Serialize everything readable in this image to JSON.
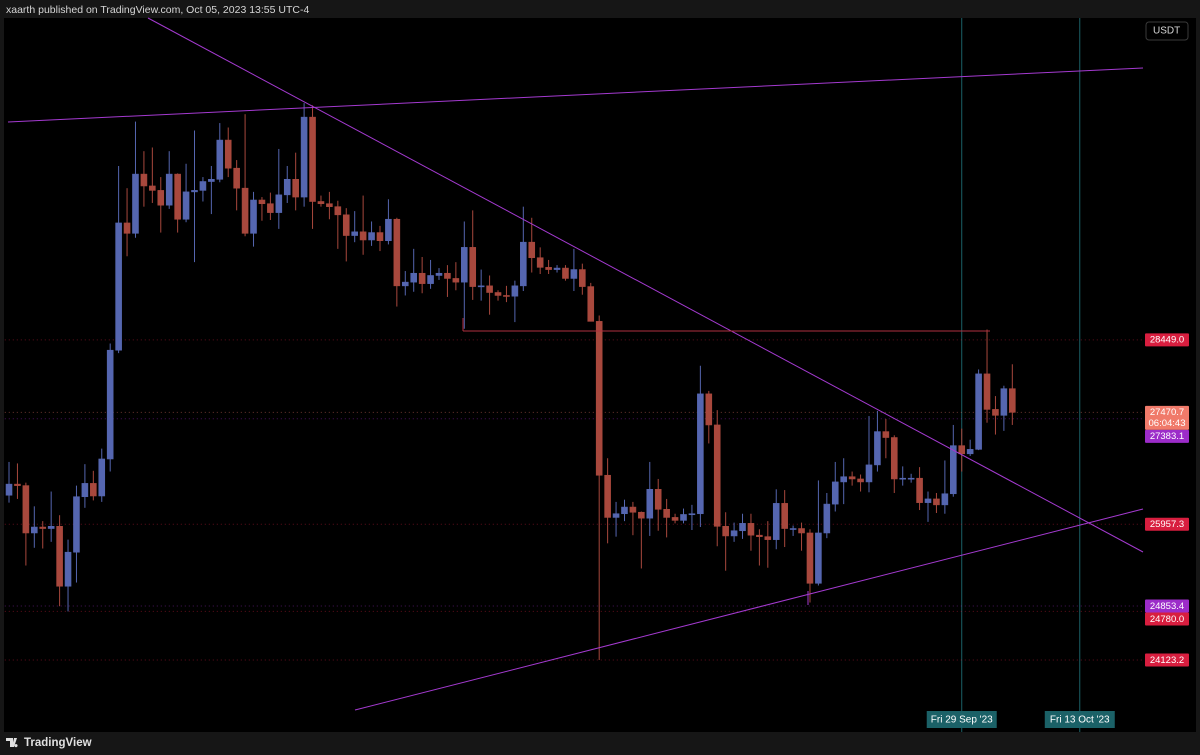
{
  "header": {
    "byline": "xaarth published on TradingView.com, Oct 05, 2023 13:55 UTC-4"
  },
  "footer": {
    "brand": "TradingView"
  },
  "chart_data": {
    "type": "candlestick",
    "currency": "USDT",
    "categories": [
      null,
      null,
      null,
      null,
      null,
      null,
      null,
      null,
      null,
      null,
      null,
      null,
      null,
      null,
      null,
      null,
      null,
      null,
      null,
      null,
      null,
      null,
      null,
      null,
      null,
      null,
      null,
      null,
      null,
      null,
      null,
      null,
      null,
      null,
      null,
      null,
      null,
      null,
      null,
      null,
      null,
      null,
      null,
      null,
      null,
      null,
      null,
      null,
      null,
      null,
      null,
      null,
      null,
      null,
      null,
      null,
      null,
      null,
      null,
      null,
      null,
      null,
      null,
      null,
      null,
      null,
      null,
      null,
      null,
      null,
      null,
      null,
      null,
      null,
      null,
      null,
      null,
      null,
      null,
      null,
      null,
      null,
      null,
      null,
      null,
      null,
      null,
      null,
      null,
      null,
      null,
      null,
      null,
      null,
      null,
      null,
      null,
      null,
      null,
      null,
      null,
      null,
      null,
      null,
      null,
      null,
      null,
      null,
      null,
      null,
      null,
      null,
      null,
      "Fri 29 Sep '23",
      null,
      null,
      null,
      null,
      null,
      null,
      null,
      null,
      null,
      null,
      null,
      null,
      null,
      "Fri 13 Oct '23",
      null,
      null,
      null,
      null,
      null,
      null,
      null
    ],
    "open": [
      26350,
      26500,
      26480,
      25840,
      25920,
      25900,
      25930,
      25120,
      25580,
      26330,
      26510,
      26340,
      26840,
      28310,
      30030,
      29890,
      30690,
      30530,
      30470,
      30270,
      30690,
      30080,
      30450,
      30470,
      30590,
      30620,
      31150,
      30770,
      30500,
      29890,
      30340,
      30290,
      30170,
      30410,
      30620,
      30380,
      31460,
      30320,
      30290,
      30250,
      30140,
      29860,
      29910,
      29800,
      29900,
      29790,
      30080,
      29180,
      29230,
      29350,
      29210,
      29320,
      29350,
      29280,
      29230,
      29700,
      29170,
      29180,
      29090,
      29050,
      29040,
      29180,
      29770,
      29560,
      29430,
      29400,
      29420,
      29280,
      29400,
      29170,
      28700,
      26620,
      26050,
      26100,
      26190,
      26120,
      26040,
      26430,
      26160,
      26050,
      26010,
      26090,
      26100,
      27720,
      27300,
      25930,
      25800,
      25870,
      25970,
      25810,
      25790,
      25750,
      26240,
      25900,
      25900,
      25840,
      25160,
      25840,
      26230,
      26530,
      26600,
      26570,
      26530,
      26760,
      27210,
      27130,
      26570,
      26580,
      26580,
      26250,
      26300,
      26220,
      26370,
      27020,
      26910,
      26970,
      27990,
      27510,
      27430,
      27790,
      null,
      null,
      null,
      null,
      null,
      null,
      null,
      null,
      null,
      null,
      null,
      null,
      null,
      null,
      null
    ],
    "high": [
      26800,
      26780,
      26520,
      26200,
      26000,
      26400,
      26080,
      25750,
      26480,
      26770,
      26680,
      26980,
      28400,
      30800,
      30500,
      31400,
      31000,
      31050,
      30650,
      31000,
      30700,
      30830,
      31280,
      30650,
      30800,
      31380,
      31320,
      30880,
      31500,
      30450,
      30380,
      30440,
      31030,
      30800,
      30980,
      31650,
      31620,
      30400,
      30450,
      30330,
      30230,
      30190,
      30400,
      30050,
      29990,
      30350,
      30100,
      29380,
      29680,
      29570,
      29530,
      29420,
      29460,
      29500,
      30050,
      30200,
      29400,
      29320,
      29120,
      29180,
      29250,
      30250,
      30100,
      29700,
      29530,
      29460,
      29460,
      29680,
      29480,
      29220,
      28780,
      26850,
      26260,
      26290,
      26260,
      26130,
      26800,
      26570,
      26300,
      26100,
      26170,
      26220,
      28100,
      27760,
      27500,
      26120,
      25980,
      26100,
      26100,
      25890,
      26000,
      26430,
      26420,
      25940,
      25980,
      25890,
      26550,
      26380,
      26800,
      26850,
      26670,
      26630,
      27420,
      27490,
      27380,
      27160,
      26740,
      26640,
      26730,
      26400,
      26380,
      26820,
      27300,
      27250,
      27100,
      28050,
      28590,
      27690,
      27830,
      28120,
      null,
      null,
      null,
      null,
      null,
      null,
      null,
      null,
      null,
      null,
      null,
      null,
      null,
      null,
      null
    ],
    "low": [
      26250,
      26300,
      25400,
      25640,
      25630,
      25720,
      24850,
      24780,
      25170,
      26180,
      26280,
      26260,
      26670,
      28270,
      29580,
      29830,
      30250,
      30300,
      29900,
      30220,
      29900,
      30040,
      29500,
      30320,
      30150,
      30580,
      30650,
      30200,
      29850,
      29710,
      30060,
      30070,
      29950,
      30300,
      30200,
      30250,
      29950,
      30250,
      30080,
      29680,
      29510,
      29770,
      29600,
      29720,
      29650,
      29740,
      28900,
      29050,
      29100,
      29080,
      29140,
      29260,
      29030,
      29120,
      28600,
      28990,
      28980,
      28790,
      28980,
      28960,
      28690,
      29110,
      29360,
      29340,
      29340,
      29360,
      29250,
      29110,
      29060,
      28700,
      24123.2,
      25700,
      25790,
      26000,
      25810,
      25360,
      25800,
      25870,
      25780,
      25970,
      25970,
      25880,
      25920,
      27050,
      25660,
      25330,
      25720,
      25760,
      25600,
      25400,
      25370,
      25620,
      25650,
      25800,
      25600,
      24900,
      25130,
      25770,
      26130,
      26230,
      26480,
      26400,
      26390,
      26670,
      26850,
      26380,
      26480,
      26520,
      26150,
      25990,
      26110,
      26100,
      26330,
      26670,
      26880,
      26960,
      27330,
      27170,
      27220,
      27300,
      null,
      null,
      null,
      null,
      null,
      null,
      null,
      null,
      null,
      null,
      null,
      null,
      null,
      null,
      null
    ],
    "close": [
      26500,
      26480,
      25840,
      25920,
      25900,
      25930,
      25120,
      25580,
      26330,
      26510,
      26340,
      26840,
      28310,
      30030,
      29890,
      30690,
      30530,
      30470,
      30270,
      30690,
      30080,
      30450,
      30470,
      30590,
      30620,
      31150,
      30770,
      30500,
      29890,
      30340,
      30290,
      30170,
      30410,
      30620,
      30380,
      31460,
      30320,
      30290,
      30250,
      30140,
      29860,
      29910,
      29800,
      29900,
      29790,
      30080,
      29180,
      29230,
      29350,
      29210,
      29320,
      29350,
      29280,
      29230,
      29700,
      29170,
      29180,
      29090,
      29050,
      29040,
      29180,
      29770,
      29560,
      29430,
      29400,
      29420,
      29280,
      29400,
      29170,
      28700,
      26620,
      26050,
      26100,
      26190,
      26120,
      26040,
      26430,
      26160,
      26050,
      26010,
      26090,
      26100,
      27720,
      27300,
      25930,
      25800,
      25870,
      25970,
      25810,
      25790,
      25750,
      26240,
      25900,
      25900,
      25840,
      25160,
      25840,
      26230,
      26530,
      26600,
      26570,
      26530,
      26760,
      27210,
      27130,
      26570,
      26580,
      26580,
      26250,
      26300,
      26220,
      26370,
      27020,
      26910,
      26970,
      27990,
      27510,
      27430,
      27790,
      27470.7,
      null,
      null,
      null,
      null,
      null,
      null,
      null,
      null,
      null,
      null,
      null,
      null,
      null,
      null,
      null
    ],
    "up_color": "#5566b0",
    "down_color": "#a8483d",
    "ylim": [
      23150,
      32800
    ],
    "price_labels": [
      {
        "value": 28449.0,
        "label": "28449.0",
        "color": "#d81e3f"
      },
      {
        "value": 27470.7,
        "label": "27470.7",
        "countdown": "06:04:43",
        "color": "#f07a6a"
      },
      {
        "value": 27383.1,
        "label": "27383.1",
        "color": "#9c2cc9"
      },
      {
        "value": 25957.3,
        "label": "25957.3",
        "color": "#d81e3f"
      },
      {
        "value": 24853.4,
        "label": "24853.4",
        "color": "#9c2cc9"
      },
      {
        "value": 24780.0,
        "label": "24780.0",
        "color": "#d81e3f"
      },
      {
        "value": 24123.2,
        "label": "24123.2",
        "color": "#d81e3f"
      }
    ],
    "date_marker_color": "#1b6167"
  }
}
